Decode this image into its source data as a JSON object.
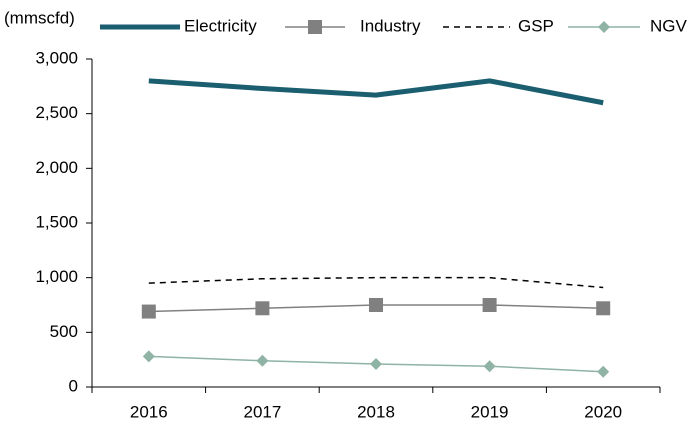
{
  "chart_data": {
    "type": "line",
    "y_label": "(mmscfd)",
    "categories": [
      "2016",
      "2017",
      "2018",
      "2019",
      "2020"
    ],
    "series": [
      {
        "name": "Electricity",
        "color": "#1b5e70",
        "values": [
          2800,
          2730,
          2670,
          2800,
          2600
        ]
      },
      {
        "name": "Industry",
        "color": "#808080",
        "values": [
          690,
          720,
          750,
          750,
          720
        ]
      },
      {
        "name": "GSP",
        "color": "#000000",
        "values": [
          950,
          990,
          1000,
          1000,
          910
        ]
      },
      {
        "name": "NGV",
        "color": "#8fb3a4",
        "values": [
          280,
          240,
          210,
          190,
          140
        ]
      }
    ],
    "ylim": [
      0,
      3000
    ],
    "yticks": [
      0,
      500,
      {
        "value": 1000,
        "label": "1,000"
      },
      {
        "value": 1500,
        "label": "1,500"
      },
      {
        "value": 2000,
        "label": "2,000"
      },
      {
        "value": 2500,
        "label": "2,500"
      },
      {
        "value": 3000,
        "label": "3,000"
      }
    ],
    "grid": false,
    "legend": "top"
  }
}
